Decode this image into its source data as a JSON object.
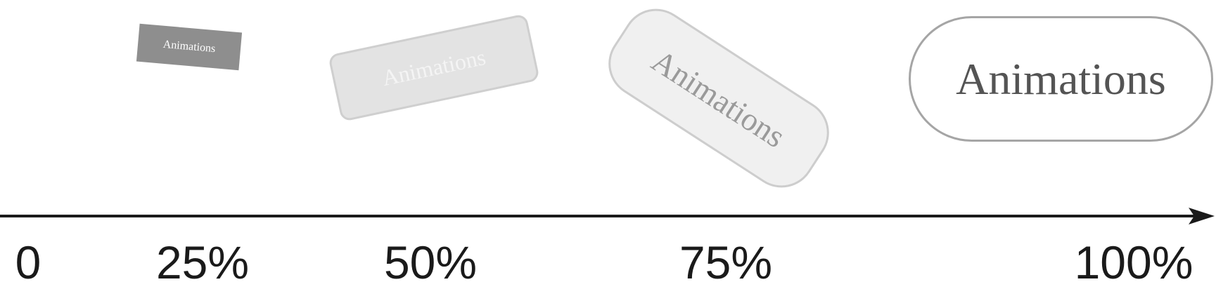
{
  "keyframes": [
    {
      "percent_label": "25%",
      "box_text": "Animations",
      "background": "#8e8e8e",
      "text_color": "#ffffff"
    },
    {
      "percent_label": "50%",
      "box_text": "Animations",
      "background": "#e3e3e3",
      "text_color": "#f4f4f4"
    },
    {
      "percent_label": "75%",
      "box_text": "Animations",
      "background": "#f0f0f0",
      "text_color": "#9a9a9a"
    },
    {
      "percent_label": "100%",
      "box_text": "Animations",
      "background": "#ffffff",
      "text_color": "#545454"
    }
  ],
  "axis": {
    "start_label": "0",
    "color": "#1a1a1a"
  }
}
